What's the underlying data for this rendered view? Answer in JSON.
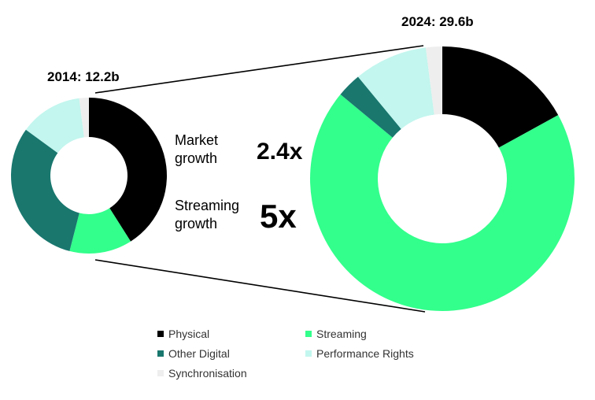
{
  "chart_data": {
    "type": "pie",
    "variant": "donut",
    "charts": [
      {
        "label": "2014: 12.2b",
        "total": 12.2,
        "slices": [
          {
            "name": "Physical",
            "value": 41
          },
          {
            "name": "Streaming",
            "value": 13
          },
          {
            "name": "Other Digital",
            "value": 31
          },
          {
            "name": "Performance Rights",
            "value": 13
          },
          {
            "name": "Synchronisation",
            "value": 2
          }
        ]
      },
      {
        "label": "2024: 29.6b",
        "total": 29.6,
        "slices": [
          {
            "name": "Physical",
            "value": 17
          },
          {
            "name": "Streaming",
            "value": 69
          },
          {
            "name": "Other Digital",
            "value": 3
          },
          {
            "name": "Performance Rights",
            "value": 9
          },
          {
            "name": "Synchronisation",
            "value": 2
          }
        ]
      }
    ],
    "unit": "percent share (estimated)"
  },
  "colors": {
    "Physical": "#000000",
    "Streaming": "#33ff8c",
    "Other Digital": "#19776e",
    "Performance Rights": "#c2f6ee",
    "Synchronisation": "#eeeeee",
    "connector": "#000000"
  },
  "metrics": [
    {
      "label": "Market growth",
      "value": "2.4x"
    },
    {
      "label": "Streaming growth",
      "value": "5x"
    }
  ],
  "legend": [
    "Physical",
    "Streaming",
    "Other Digital",
    "Performance Rights",
    "Synchronisation"
  ]
}
